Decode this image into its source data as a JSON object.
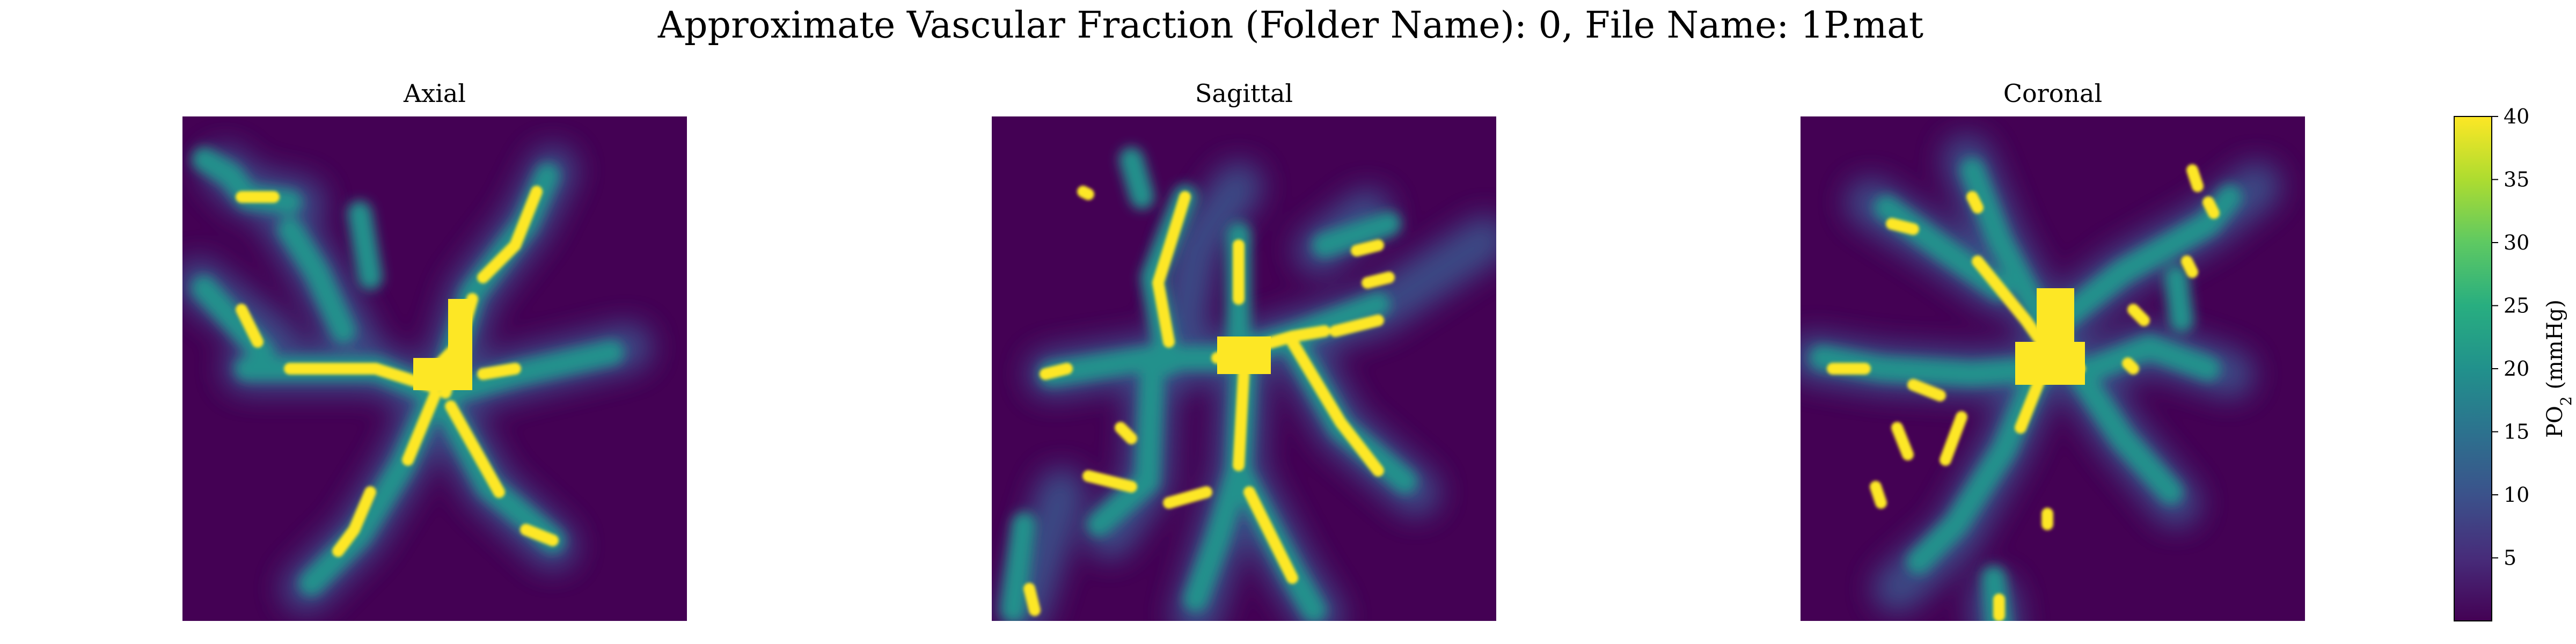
{
  "chart_data": {
    "type": "heatmap",
    "title": "Approximate Vascular Fraction (Folder Name): 0, File Name: 1P.mat",
    "panels": [
      {
        "title": "Axial"
      },
      {
        "title": "Sagittal"
      },
      {
        "title": "Coronal"
      }
    ],
    "colormap": "viridis",
    "colors": {
      "low": "#440154",
      "mid": "#21918c",
      "high": "#fde725"
    },
    "colorbar": {
      "label": "PO$_2$ (mmHg)",
      "label_main": "PO",
      "label_sub": "2",
      "label_rest": " (mmHg)",
      "range": [
        0,
        40
      ],
      "ticks": [
        5,
        10,
        15,
        20,
        25,
        30,
        35,
        40
      ],
      "tick_labels": [
        "5",
        "10",
        "15",
        "20",
        "25",
        "30",
        "35",
        "40"
      ]
    },
    "axes_visible": false,
    "grid": false
  }
}
